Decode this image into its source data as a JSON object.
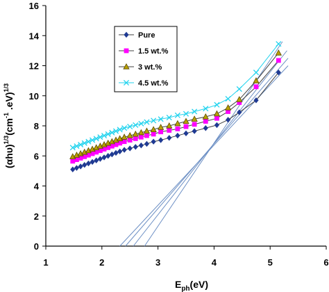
{
  "chart_data": {
    "type": "line",
    "xlabel_main": "E",
    "xlabel_sub": "ph",
    "xlabel_unit": "(eV)",
    "ylabel_main": "(αhυ)",
    "ylabel_sup1": "1/3",
    "ylabel_mid": "(cm",
    "ylabel_sup2": "-1",
    "ylabel_mid2": " .eV)",
    "ylabel_sup3": "1/3",
    "xlim": [
      1,
      6
    ],
    "ylim": [
      0,
      16
    ],
    "xticks": [
      "1",
      "2",
      "3",
      "4",
      "5",
      "6"
    ],
    "yticks": [
      "0",
      "2",
      "4",
      "6",
      "8",
      "10",
      "12",
      "14",
      "16"
    ],
    "grid": false,
    "legend_position": "top-left",
    "series": [
      {
        "name": "Pure",
        "color": "#1F3A93",
        "marker": "diamond",
        "x": [
          1.48,
          1.55,
          1.62,
          1.69,
          1.76,
          1.83,
          1.9,
          1.97,
          2.04,
          2.11,
          2.18,
          2.25,
          2.32,
          2.4,
          2.5,
          2.6,
          2.7,
          2.8,
          2.92,
          3.05,
          3.2,
          3.35,
          3.5,
          3.65,
          3.85,
          4.05,
          4.25,
          4.45,
          4.75,
          5.15
        ],
        "y": [
          5.1,
          5.2,
          5.3,
          5.4,
          5.5,
          5.6,
          5.7,
          5.8,
          5.9,
          6.0,
          6.1,
          6.2,
          6.3,
          6.4,
          6.5,
          6.6,
          6.7,
          6.8,
          6.95,
          7.05,
          7.2,
          7.35,
          7.5,
          7.65,
          7.85,
          8.05,
          8.4,
          8.9,
          9.7,
          11.55
        ]
      },
      {
        "name": "1.5 wt.%",
        "color": "#FF00FF",
        "marker": "square",
        "x": [
          1.48,
          1.55,
          1.62,
          1.69,
          1.76,
          1.83,
          1.9,
          1.97,
          2.04,
          2.11,
          2.18,
          2.25,
          2.32,
          2.4,
          2.5,
          2.6,
          2.7,
          2.8,
          2.92,
          3.05,
          3.2,
          3.35,
          3.5,
          3.65,
          3.85,
          4.05,
          4.25,
          4.45,
          4.75,
          5.15
        ],
        "y": [
          5.65,
          5.75,
          5.85,
          5.95,
          6.05,
          6.15,
          6.25,
          6.35,
          6.45,
          6.55,
          6.65,
          6.75,
          6.85,
          6.95,
          7.05,
          7.15,
          7.25,
          7.35,
          7.45,
          7.6,
          7.7,
          7.8,
          7.95,
          8.1,
          8.3,
          8.5,
          8.95,
          9.55,
          10.6,
          12.35
        ]
      },
      {
        "name": "3 wt.%",
        "color": "#B8A000",
        "marker": "triangle",
        "x": [
          1.48,
          1.55,
          1.62,
          1.69,
          1.76,
          1.83,
          1.9,
          1.97,
          2.04,
          2.11,
          2.18,
          2.25,
          2.32,
          2.4,
          2.5,
          2.6,
          2.7,
          2.8,
          2.92,
          3.05,
          3.2,
          3.35,
          3.5,
          3.65,
          3.85,
          4.05,
          4.25,
          4.45,
          4.75,
          5.15
        ],
        "y": [
          5.95,
          6.05,
          6.15,
          6.25,
          6.35,
          6.45,
          6.55,
          6.65,
          6.75,
          6.85,
          6.95,
          7.05,
          7.15,
          7.25,
          7.35,
          7.45,
          7.55,
          7.65,
          7.75,
          7.9,
          8.0,
          8.15,
          8.3,
          8.45,
          8.6,
          8.8,
          9.2,
          9.75,
          11.0,
          12.85
        ]
      },
      {
        "name": "4.5 wt.%",
        "color": "#22D3EE",
        "marker": "x",
        "x": [
          1.48,
          1.55,
          1.62,
          1.69,
          1.76,
          1.83,
          1.9,
          1.97,
          2.04,
          2.11,
          2.18,
          2.25,
          2.32,
          2.4,
          2.5,
          2.6,
          2.7,
          2.8,
          2.92,
          3.05,
          3.2,
          3.35,
          3.5,
          3.65,
          3.85,
          4.05,
          4.25,
          4.45,
          4.75,
          5.15
        ],
        "y": [
          6.55,
          6.65,
          6.75,
          6.85,
          6.95,
          7.05,
          7.15,
          7.25,
          7.35,
          7.45,
          7.55,
          7.65,
          7.75,
          7.85,
          7.95,
          8.05,
          8.15,
          8.25,
          8.35,
          8.45,
          8.55,
          8.7,
          8.8,
          8.95,
          9.15,
          9.4,
          9.8,
          10.45,
          11.55,
          13.45
        ]
      }
    ],
    "fit_lines": [
      {
        "x": [
          2.32,
          5.32
        ],
        "y": [
          0,
          12.0
        ]
      },
      {
        "x": [
          2.42,
          5.32
        ],
        "y": [
          0,
          12.5
        ]
      },
      {
        "x": [
          2.56,
          5.3
        ],
        "y": [
          0,
          13.0
        ]
      },
      {
        "x": [
          2.76,
          5.22
        ],
        "y": [
          0,
          13.6
        ]
      }
    ]
  }
}
